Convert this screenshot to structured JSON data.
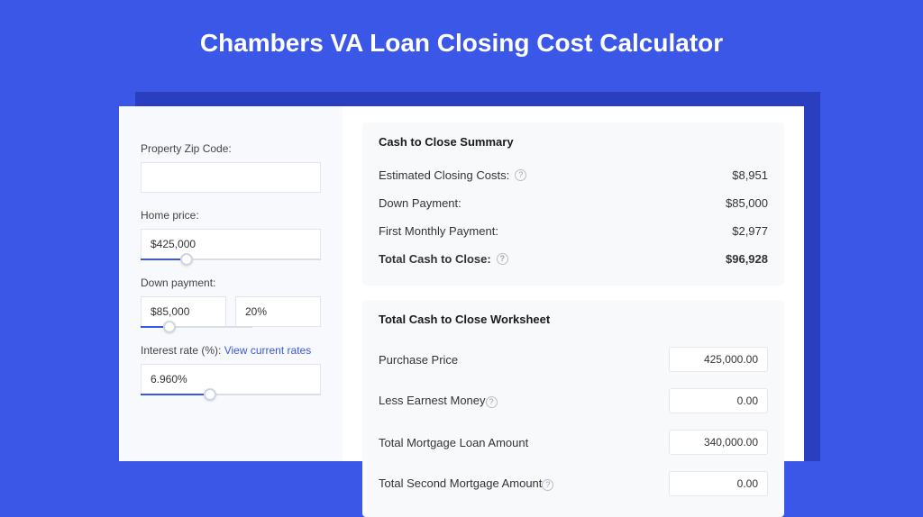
{
  "colors": {
    "page_bg": "#3a57e8",
    "shadow": "#2a3fc0",
    "card_bg": "#ffffff",
    "left_bg": "#f7f9fc",
    "panel_bg": "#f8f9fb",
    "accent": "#3a57e8",
    "border": "#e2e6ec",
    "text": "#1a1a1a"
  },
  "title": "Chambers VA Loan Closing Cost Calculator",
  "inputs": {
    "zip": {
      "label": "Property Zip Code:",
      "value": ""
    },
    "home_price": {
      "label": "Home price:",
      "value": "$425,000",
      "slider_pct": 22
    },
    "down_payment": {
      "label": "Down payment:",
      "value": "$85,000",
      "pct": "20%",
      "slider_pct": 20
    },
    "interest": {
      "label": "Interest rate (%):",
      "link_text": "View current rates",
      "value": "6.960%",
      "slider_pct": 35
    }
  },
  "summary": {
    "title": "Cash to Close Summary",
    "rows": [
      {
        "label": "Estimated Closing Costs:",
        "help": true,
        "value": "$8,951",
        "bold": false
      },
      {
        "label": "Down Payment:",
        "help": false,
        "value": "$85,000",
        "bold": false
      },
      {
        "label": "First Monthly Payment:",
        "help": false,
        "value": "$2,977",
        "bold": false
      },
      {
        "label": "Total Cash to Close:",
        "help": true,
        "value": "$96,928",
        "bold": true
      }
    ]
  },
  "worksheet": {
    "title": "Total Cash to Close Worksheet",
    "rows": [
      {
        "label": "Purchase Price",
        "help": false,
        "value": "425,000.00"
      },
      {
        "label": "Less Earnest Money",
        "help": true,
        "value": "0.00"
      },
      {
        "label": "Total Mortgage Loan Amount",
        "help": false,
        "value": "340,000.00"
      },
      {
        "label": "Total Second Mortgage Amount",
        "help": true,
        "value": "0.00"
      }
    ]
  }
}
